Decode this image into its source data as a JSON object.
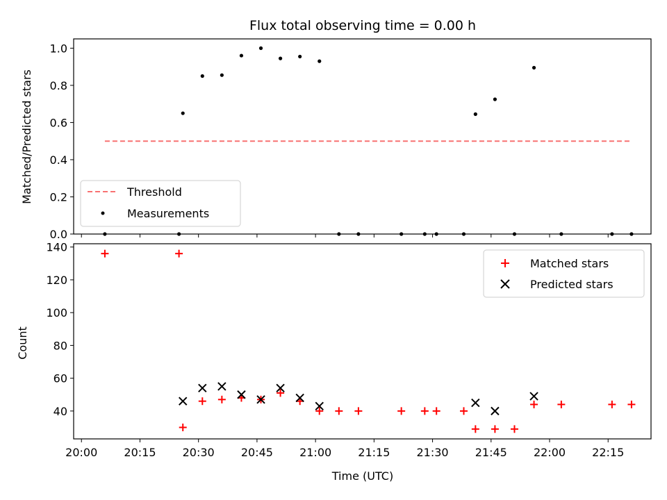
{
  "chart_data": [
    {
      "type": "scatter",
      "title": "Flux total observing time = 0.00 h",
      "xlabel": "",
      "ylabel": "Matched/Predicted stars",
      "xlim": [
        "19:58",
        "22:26"
      ],
      "ylim": [
        0,
        1.05
      ],
      "yticks": [
        "0.0",
        "0.2",
        "0.4",
        "0.6",
        "0.8",
        "1.0"
      ],
      "grid": false,
      "legend": "lower-left",
      "series": [
        {
          "name": "Threshold",
          "kind": "dashed-line",
          "color": "#f87171",
          "points": [
            {
              "x": "20:06",
              "y": 0.5
            },
            {
              "x": "22:21",
              "y": 0.5
            }
          ]
        },
        {
          "name": "Measurements",
          "kind": "dot",
          "color": "#000000",
          "points": [
            {
              "x": "20:06",
              "y": 0.0
            },
            {
              "x": "20:25",
              "y": 0.0
            },
            {
              "x": "20:26",
              "y": 0.65
            },
            {
              "x": "20:31",
              "y": 0.85
            },
            {
              "x": "20:36",
              "y": 0.855
            },
            {
              "x": "20:41",
              "y": 0.96
            },
            {
              "x": "20:46",
              "y": 1.0
            },
            {
              "x": "20:51",
              "y": 0.945
            },
            {
              "x": "20:56",
              "y": 0.955
            },
            {
              "x": "21:01",
              "y": 0.93
            },
            {
              "x": "21:06",
              "y": 0.0
            },
            {
              "x": "21:11",
              "y": 0.0
            },
            {
              "x": "21:22",
              "y": 0.0
            },
            {
              "x": "21:28",
              "y": 0.0
            },
            {
              "x": "21:31",
              "y": 0.0
            },
            {
              "x": "21:38",
              "y": 0.0
            },
            {
              "x": "21:41",
              "y": 0.645
            },
            {
              "x": "21:46",
              "y": 0.725
            },
            {
              "x": "21:51",
              "y": 0.0
            },
            {
              "x": "21:56",
              "y": 0.895
            },
            {
              "x": "22:03",
              "y": 0.0
            },
            {
              "x": "22:16",
              "y": 0.0
            },
            {
              "x": "22:21",
              "y": 0.0
            }
          ]
        }
      ]
    },
    {
      "type": "scatter",
      "title": "",
      "xlabel": "Time (UTC)",
      "ylabel": "Count",
      "xlim": [
        "19:58",
        "22:26"
      ],
      "ylim": [
        23,
        142
      ],
      "xticks": [
        "20:00",
        "20:15",
        "20:30",
        "20:45",
        "21:00",
        "21:15",
        "21:30",
        "21:45",
        "22:00",
        "22:15"
      ],
      "yticks": [
        "40",
        "60",
        "80",
        "100",
        "120",
        "140"
      ],
      "grid": false,
      "legend": "top-right",
      "series": [
        {
          "name": "Matched stars",
          "kind": "plus",
          "color": "#ff0000",
          "points": [
            {
              "x": "20:06",
              "y": 136
            },
            {
              "x": "20:25",
              "y": 136
            },
            {
              "x": "20:26",
              "y": 30
            },
            {
              "x": "20:31",
              "y": 46
            },
            {
              "x": "20:36",
              "y": 47
            },
            {
              "x": "20:41",
              "y": 48
            },
            {
              "x": "20:46",
              "y": 47
            },
            {
              "x": "20:51",
              "y": 51
            },
            {
              "x": "20:56",
              "y": 46
            },
            {
              "x": "21:01",
              "y": 40
            },
            {
              "x": "21:06",
              "y": 40
            },
            {
              "x": "21:11",
              "y": 40
            },
            {
              "x": "21:22",
              "y": 40
            },
            {
              "x": "21:28",
              "y": 40
            },
            {
              "x": "21:31",
              "y": 40
            },
            {
              "x": "21:38",
              "y": 40
            },
            {
              "x": "21:41",
              "y": 29
            },
            {
              "x": "21:46",
              "y": 29
            },
            {
              "x": "21:51",
              "y": 29
            },
            {
              "x": "21:56",
              "y": 44
            },
            {
              "x": "22:03",
              "y": 44
            },
            {
              "x": "22:16",
              "y": 44
            },
            {
              "x": "22:21",
              "y": 44
            }
          ]
        },
        {
          "name": "Predicted stars",
          "kind": "x",
          "color": "#000000",
          "points": [
            {
              "x": "20:26",
              "y": 46
            },
            {
              "x": "20:31",
              "y": 54
            },
            {
              "x": "20:36",
              "y": 55
            },
            {
              "x": "20:41",
              "y": 50
            },
            {
              "x": "20:46",
              "y": 47
            },
            {
              "x": "20:51",
              "y": 54
            },
            {
              "x": "20:56",
              "y": 48
            },
            {
              "x": "21:01",
              "y": 43
            },
            {
              "x": "21:41",
              "y": 45
            },
            {
              "x": "21:46",
              "y": 40
            },
            {
              "x": "21:56",
              "y": 49
            }
          ]
        }
      ]
    }
  ]
}
